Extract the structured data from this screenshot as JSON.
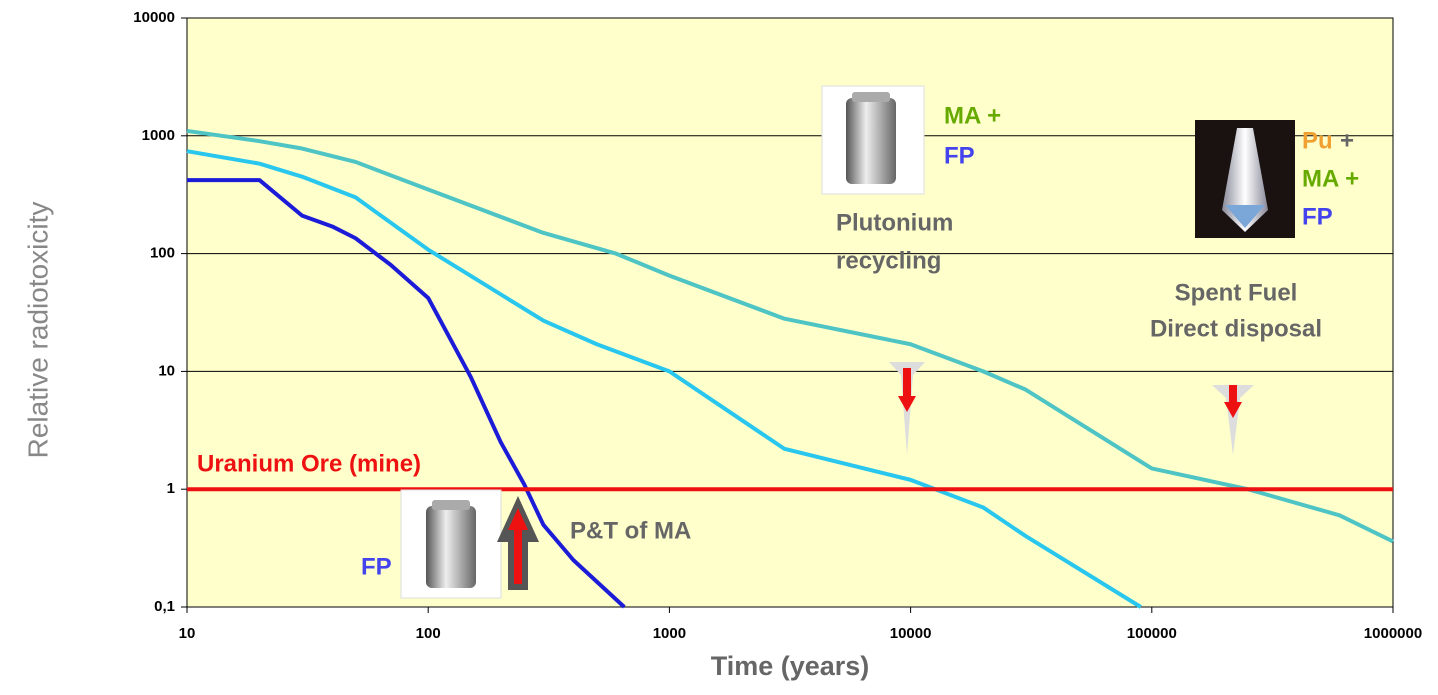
{
  "chart_data": {
    "type": "line",
    "xlog": true,
    "ylog": true,
    "grid": true,
    "xlabel": "Time  (years)",
    "ylabel": "Relative radiotoxicity",
    "xlim": [
      10,
      1000000
    ],
    "ylim": [
      0.1,
      10000
    ],
    "xticks": [
      10,
      100,
      1000,
      10000,
      100000,
      1000000
    ],
    "yticks": [
      {
        "value": 0.1,
        "label": "0,1"
      },
      1,
      10,
      100,
      1000,
      10000
    ],
    "background": "#ffffcc",
    "series": [
      {
        "color": "#1c1cd8",
        "x": [
          10,
          20,
          30,
          40,
          50,
          70,
          100,
          150,
          200,
          250,
          300,
          400,
          650
        ],
        "values": [
          420,
          420,
          210,
          170,
          135,
          80,
          42,
          9,
          2.5,
          1.1,
          0.5,
          0.25,
          0.1
        ]
      },
      {
        "color": "#29c6ee",
        "x": [
          10,
          20,
          30,
          50,
          100,
          300,
          500,
          1000,
          3000,
          10000,
          20000,
          30000,
          90000
        ],
        "values": [
          740,
          580,
          450,
          300,
          108,
          27,
          17,
          10,
          2.2,
          1.2,
          0.7,
          0.4,
          0.1
        ]
      },
      {
        "color": "#4ec4c4",
        "x": [
          10,
          20,
          30,
          50,
          100,
          300,
          600,
          1000,
          3000,
          10000,
          20000,
          30000,
          100000,
          250000,
          600000,
          1000000
        ],
        "values": [
          1100,
          900,
          780,
          600,
          350,
          150,
          100,
          65,
          28,
          17,
          10,
          7,
          1.5,
          1.0,
          0.6,
          0.36
        ]
      },
      {
        "name": "Uranium Ore (mine)",
        "color": "#ee1111",
        "x": [
          10,
          1000000
        ],
        "values": [
          1,
          1
        ]
      }
    ],
    "annotations": [
      "MA +",
      "FP",
      "Pu",
      "+",
      "MA +",
      "FP",
      "Plutonium",
      "recycling",
      "Spent Fuel",
      "Direct disposal",
      "P&T of MA",
      "FP"
    ]
  }
}
